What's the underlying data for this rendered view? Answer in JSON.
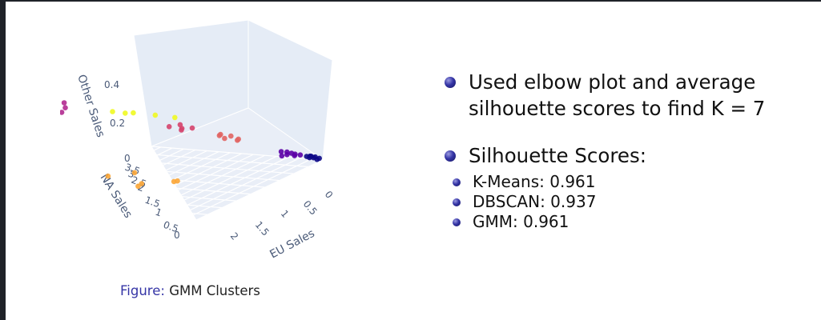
{
  "chart_data": {
    "type": "scatter",
    "axes": {
      "x": {
        "label": "EU Sales",
        "ticks": [
          "0",
          "0.5",
          "1",
          "1.5",
          "2"
        ]
      },
      "y": {
        "label": "NA Sales",
        "ticks": [
          "0",
          "0.5",
          "1",
          "1.5",
          "2",
          "2.5",
          "3",
          "3.5"
        ]
      },
      "z": {
        "label": "Other Sales",
        "ticks": [
          "0",
          "0.2",
          "0.4"
        ]
      }
    },
    "grid": true,
    "series": [
      {
        "color": "#0d0887",
        "points": [
          [
            0.02,
            0.05,
            0.01
          ],
          [
            0.05,
            0.1,
            0.02
          ],
          [
            0.08,
            0.1,
            0.02
          ],
          [
            0.1,
            0.15,
            0.03
          ],
          [
            0.04,
            0.2,
            0.02
          ],
          [
            0.12,
            0.2,
            0.03
          ],
          [
            0.06,
            0.05,
            0.01
          ],
          [
            0.15,
            0.1,
            0.03
          ]
        ]
      },
      {
        "color": "#5c01a6",
        "points": [
          [
            0.15,
            0.3,
            0.04
          ],
          [
            0.2,
            0.35,
            0.05
          ],
          [
            0.25,
            0.3,
            0.05
          ],
          [
            0.18,
            0.45,
            0.05
          ],
          [
            0.3,
            0.4,
            0.06
          ],
          [
            0.22,
            0.5,
            0.06
          ],
          [
            0.28,
            0.55,
            0.07
          ],
          [
            0.35,
            0.45,
            0.06
          ]
        ]
      },
      {
        "color": "#e16462",
        "points": [
          [
            0.5,
            1.2,
            0.15
          ],
          [
            0.6,
            1.1,
            0.16
          ],
          [
            0.55,
            1.3,
            0.17
          ],
          [
            0.7,
            1.25,
            0.18
          ],
          [
            0.65,
            1.4,
            0.19
          ],
          [
            0.75,
            1.3,
            0.2
          ]
        ]
      },
      {
        "color": "#d5446d",
        "points": [
          [
            0.9,
            1.7,
            0.25
          ],
          [
            1.0,
            1.8,
            0.26
          ],
          [
            0.95,
            1.9,
            0.27
          ],
          [
            1.05,
            1.75,
            0.26
          ],
          [
            1.1,
            1.95,
            0.28
          ]
        ]
      },
      {
        "color": "#fca636",
        "points": [
          [
            1.6,
            2.0,
            0.05
          ],
          [
            1.7,
            1.8,
            0.08
          ],
          [
            1.5,
            2.2,
            0.1
          ],
          [
            1.3,
            1.6,
            0.04
          ],
          [
            1.4,
            1.4,
            0.06
          ],
          [
            1.8,
            2.4,
            0.12
          ]
        ]
      },
      {
        "color": "#f0f921",
        "points": [
          [
            1.2,
            2.6,
            0.35
          ],
          [
            1.4,
            2.8,
            0.38
          ],
          [
            0.9,
            2.5,
            0.3
          ],
          [
            1.1,
            2.9,
            0.33
          ],
          [
            0.8,
            2.2,
            0.28
          ]
        ]
      },
      {
        "color": "#b12a90",
        "points": [
          [
            2.1,
            3.3,
            0.52
          ],
          [
            2.0,
            3.1,
            0.5
          ],
          [
            1.9,
            3.2,
            0.46
          ],
          [
            2.2,
            3.0,
            0.44
          ],
          [
            1.8,
            3.4,
            0.42
          ],
          [
            2.3,
            3.2,
            0.41
          ]
        ]
      }
    ]
  },
  "figure": {
    "caption_prefix": "Figure:",
    "caption_text": "GMM Clusters"
  },
  "bullets": {
    "item1": {
      "line1": "Used elbow plot and average",
      "line2": "silhouette scores to find K = 7"
    },
    "item2": {
      "title": "Silhouette Scores:"
    },
    "scores": [
      {
        "text": "K-Means: 0.961"
      },
      {
        "text": "DBSCAN: 0.937"
      },
      {
        "text": "GMM: 0.961"
      }
    ]
  }
}
